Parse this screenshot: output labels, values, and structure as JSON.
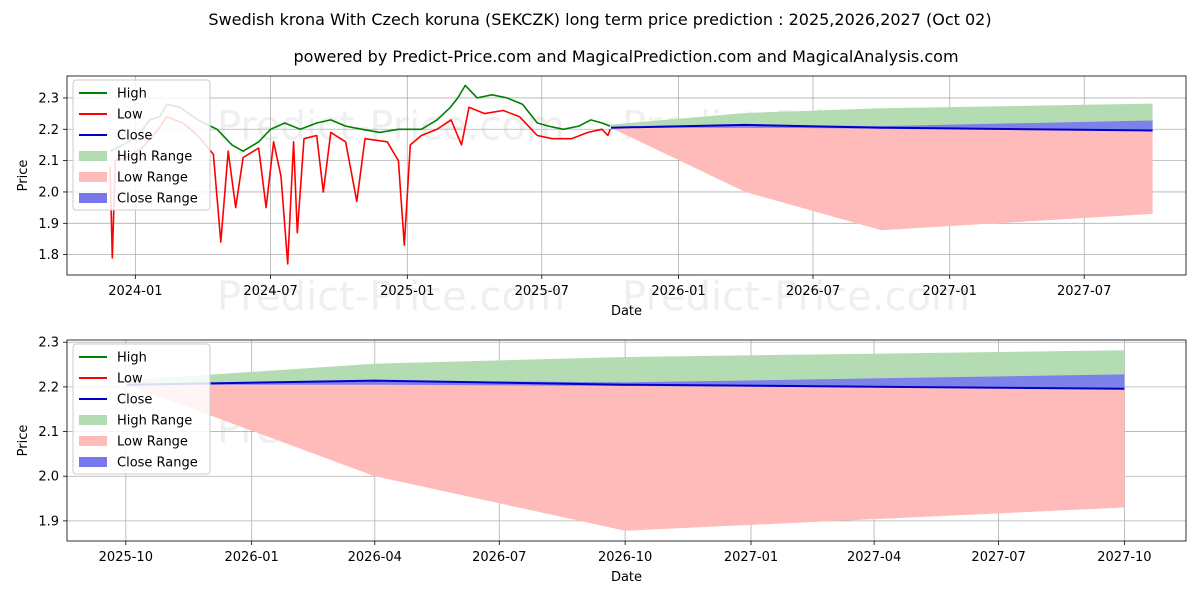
{
  "title": "Swedish krona With Czech koruna (SEKCZK) long term price prediction : 2025,2026,2027 (Oct 02)",
  "subtitle": "powered by Predict-Price.com and MagicalPrediction.com and MagicalAnalysis.com",
  "watermark": "Predict-Price.com",
  "colors": {
    "high": "#008000",
    "low": "#ff0000",
    "close": "#0000cc",
    "high_range": "#b3dcb3",
    "low_range": "#ffbaba",
    "close_range": "#7777ee",
    "grid": "#b0b0b0"
  },
  "legend": [
    "High",
    "Low",
    "Close",
    "High Range",
    "Low Range",
    "Close Range"
  ],
  "chart_data": [
    {
      "type": "line",
      "name": "history-and-forecast",
      "xlabel": "Date",
      "ylabel": "Price",
      "xlim": [
        "2023-10-01",
        "2027-11-15"
      ],
      "ylim": [
        1.735,
        2.37
      ],
      "xticks": [
        {
          "date": "2024-01-01",
          "label": "2024-01"
        },
        {
          "date": "2024-07-01",
          "label": "2024-07"
        },
        {
          "date": "2025-01-01",
          "label": "2025-01"
        },
        {
          "date": "2025-07-01",
          "label": "2025-07"
        },
        {
          "date": "2026-01-01",
          "label": "2026-01"
        },
        {
          "date": "2026-07-01",
          "label": "2026-07"
        },
        {
          "date": "2027-01-01",
          "label": "2027-01"
        },
        {
          "date": "2027-07-01",
          "label": "2027-07"
        }
      ],
      "yticks": [
        1.8,
        1.9,
        2.0,
        2.1,
        2.2,
        2.3
      ],
      "history_high": [
        [
          "2023-11-28",
          2.13
        ],
        [
          "2023-12-15",
          2.15
        ],
        [
          "2024-01-05",
          2.18
        ],
        [
          "2024-01-20",
          2.23
        ],
        [
          "2024-02-03",
          2.24
        ],
        [
          "2024-02-12",
          2.28
        ],
        [
          "2024-03-01",
          2.27
        ],
        [
          "2024-03-25",
          2.23
        ],
        [
          "2024-04-20",
          2.2
        ],
        [
          "2024-05-10",
          2.15
        ],
        [
          "2024-05-25",
          2.13
        ],
        [
          "2024-06-15",
          2.16
        ],
        [
          "2024-07-01",
          2.2
        ],
        [
          "2024-07-20",
          2.22
        ],
        [
          "2024-08-10",
          2.2
        ],
        [
          "2024-09-01",
          2.22
        ],
        [
          "2024-09-20",
          2.23
        ],
        [
          "2024-10-10",
          2.21
        ],
        [
          "2024-11-01",
          2.2
        ],
        [
          "2024-11-25",
          2.19
        ],
        [
          "2024-12-20",
          2.2
        ],
        [
          "2025-01-20",
          2.2
        ],
        [
          "2025-02-10",
          2.23
        ],
        [
          "2025-02-28",
          2.27
        ],
        [
          "2025-03-10",
          2.3
        ],
        [
          "2025-03-20",
          2.34
        ],
        [
          "2025-04-05",
          2.3
        ],
        [
          "2025-04-25",
          2.31
        ],
        [
          "2025-05-15",
          2.3
        ],
        [
          "2025-06-05",
          2.28
        ],
        [
          "2025-06-25",
          2.22
        ],
        [
          "2025-07-10",
          2.21
        ],
        [
          "2025-07-30",
          2.2
        ],
        [
          "2025-08-20",
          2.21
        ],
        [
          "2025-09-05",
          2.23
        ],
        [
          "2025-09-20",
          2.22
        ],
        [
          "2025-10-01",
          2.21
        ]
      ],
      "history_low": [
        [
          "2023-11-28",
          2.08
        ],
        [
          "2023-12-01",
          1.79
        ],
        [
          "2023-12-05",
          2.1
        ],
        [
          "2023-12-20",
          2.11
        ],
        [
          "2024-01-10",
          2.14
        ],
        [
          "2024-02-01",
          2.2
        ],
        [
          "2024-02-12",
          2.24
        ],
        [
          "2024-03-05",
          2.22
        ],
        [
          "2024-03-25",
          2.18
        ],
        [
          "2024-04-15",
          2.12
        ],
        [
          "2024-04-25",
          1.84
        ],
        [
          "2024-05-05",
          2.13
        ],
        [
          "2024-05-15",
          1.95
        ],
        [
          "2024-05-25",
          2.11
        ],
        [
          "2024-06-15",
          2.14
        ],
        [
          "2024-06-25",
          1.95
        ],
        [
          "2024-07-05",
          2.16
        ],
        [
          "2024-07-15",
          2.05
        ],
        [
          "2024-07-24",
          1.77
        ],
        [
          "2024-08-01",
          2.16
        ],
        [
          "2024-08-06",
          1.87
        ],
        [
          "2024-08-15",
          2.17
        ],
        [
          "2024-09-01",
          2.18
        ],
        [
          "2024-09-10",
          2.0
        ],
        [
          "2024-09-20",
          2.19
        ],
        [
          "2024-10-10",
          2.16
        ],
        [
          "2024-10-25",
          1.97
        ],
        [
          "2024-11-05",
          2.17
        ],
        [
          "2024-12-05",
          2.16
        ],
        [
          "2024-12-20",
          2.1
        ],
        [
          "2024-12-28",
          1.83
        ],
        [
          "2025-01-05",
          2.15
        ],
        [
          "2025-01-20",
          2.18
        ],
        [
          "2025-02-10",
          2.2
        ],
        [
          "2025-03-01",
          2.23
        ],
        [
          "2025-03-15",
          2.15
        ],
        [
          "2025-03-25",
          2.27
        ],
        [
          "2025-04-15",
          2.25
        ],
        [
          "2025-05-10",
          2.26
        ],
        [
          "2025-06-01",
          2.24
        ],
        [
          "2025-06-25",
          2.18
        ],
        [
          "2025-07-15",
          2.17
        ],
        [
          "2025-08-10",
          2.17
        ],
        [
          "2025-09-01",
          2.19
        ],
        [
          "2025-09-20",
          2.2
        ],
        [
          "2025-09-28",
          2.18
        ],
        [
          "2025-10-01",
          2.2
        ]
      ],
      "forecast_dates": [
        "2025-10-02",
        "2026-04-01",
        "2026-10-01",
        "2027-10-01"
      ],
      "forecast_close": [
        2.205,
        2.214,
        2.205,
        2.196
      ],
      "high_range_upper": [
        2.215,
        2.252,
        2.267,
        2.282
      ],
      "high_range_lower": [
        2.205,
        2.214,
        2.205,
        2.196
      ],
      "low_range_upper": [
        2.205,
        2.214,
        2.205,
        2.196
      ],
      "low_range_lower": [
        2.205,
        2.0,
        1.878,
        1.93
      ],
      "close_range_upper": [
        2.205,
        2.214,
        2.21,
        2.228
      ],
      "close_range_lower": [
        2.205,
        2.205,
        2.202,
        2.196
      ]
    },
    {
      "type": "line",
      "name": "forecast-zoom",
      "xlabel": "Date",
      "ylabel": "Price",
      "xlim": [
        "2025-08-19",
        "2027-11-15"
      ],
      "ylim": [
        1.855,
        2.305
      ],
      "xticks": [
        {
          "date": "2025-10-01",
          "label": "2025-10"
        },
        {
          "date": "2026-01-01",
          "label": "2026-01"
        },
        {
          "date": "2026-04-01",
          "label": "2026-04"
        },
        {
          "date": "2026-07-01",
          "label": "2026-07"
        },
        {
          "date": "2026-10-01",
          "label": "2026-10"
        },
        {
          "date": "2027-01-01",
          "label": "2027-01"
        },
        {
          "date": "2027-04-01",
          "label": "2027-04"
        },
        {
          "date": "2027-07-01",
          "label": "2027-07"
        },
        {
          "date": "2027-10-01",
          "label": "2027-10"
        }
      ],
      "yticks": [
        1.9,
        2.0,
        2.1,
        2.2,
        2.3
      ],
      "forecast_dates": [
        "2025-10-02",
        "2026-04-01",
        "2026-10-01",
        "2027-10-01"
      ],
      "forecast_close": [
        2.205,
        2.214,
        2.205,
        2.196
      ],
      "high_range_upper": [
        2.215,
        2.252,
        2.267,
        2.282
      ],
      "high_range_lower": [
        2.205,
        2.214,
        2.205,
        2.196
      ],
      "low_range_upper": [
        2.205,
        2.214,
        2.205,
        2.196
      ],
      "low_range_lower": [
        2.205,
        2.0,
        1.878,
        1.93
      ],
      "close_range_upper": [
        2.205,
        2.214,
        2.21,
        2.228
      ],
      "close_range_lower": [
        2.205,
        2.205,
        2.202,
        2.196
      ]
    }
  ]
}
